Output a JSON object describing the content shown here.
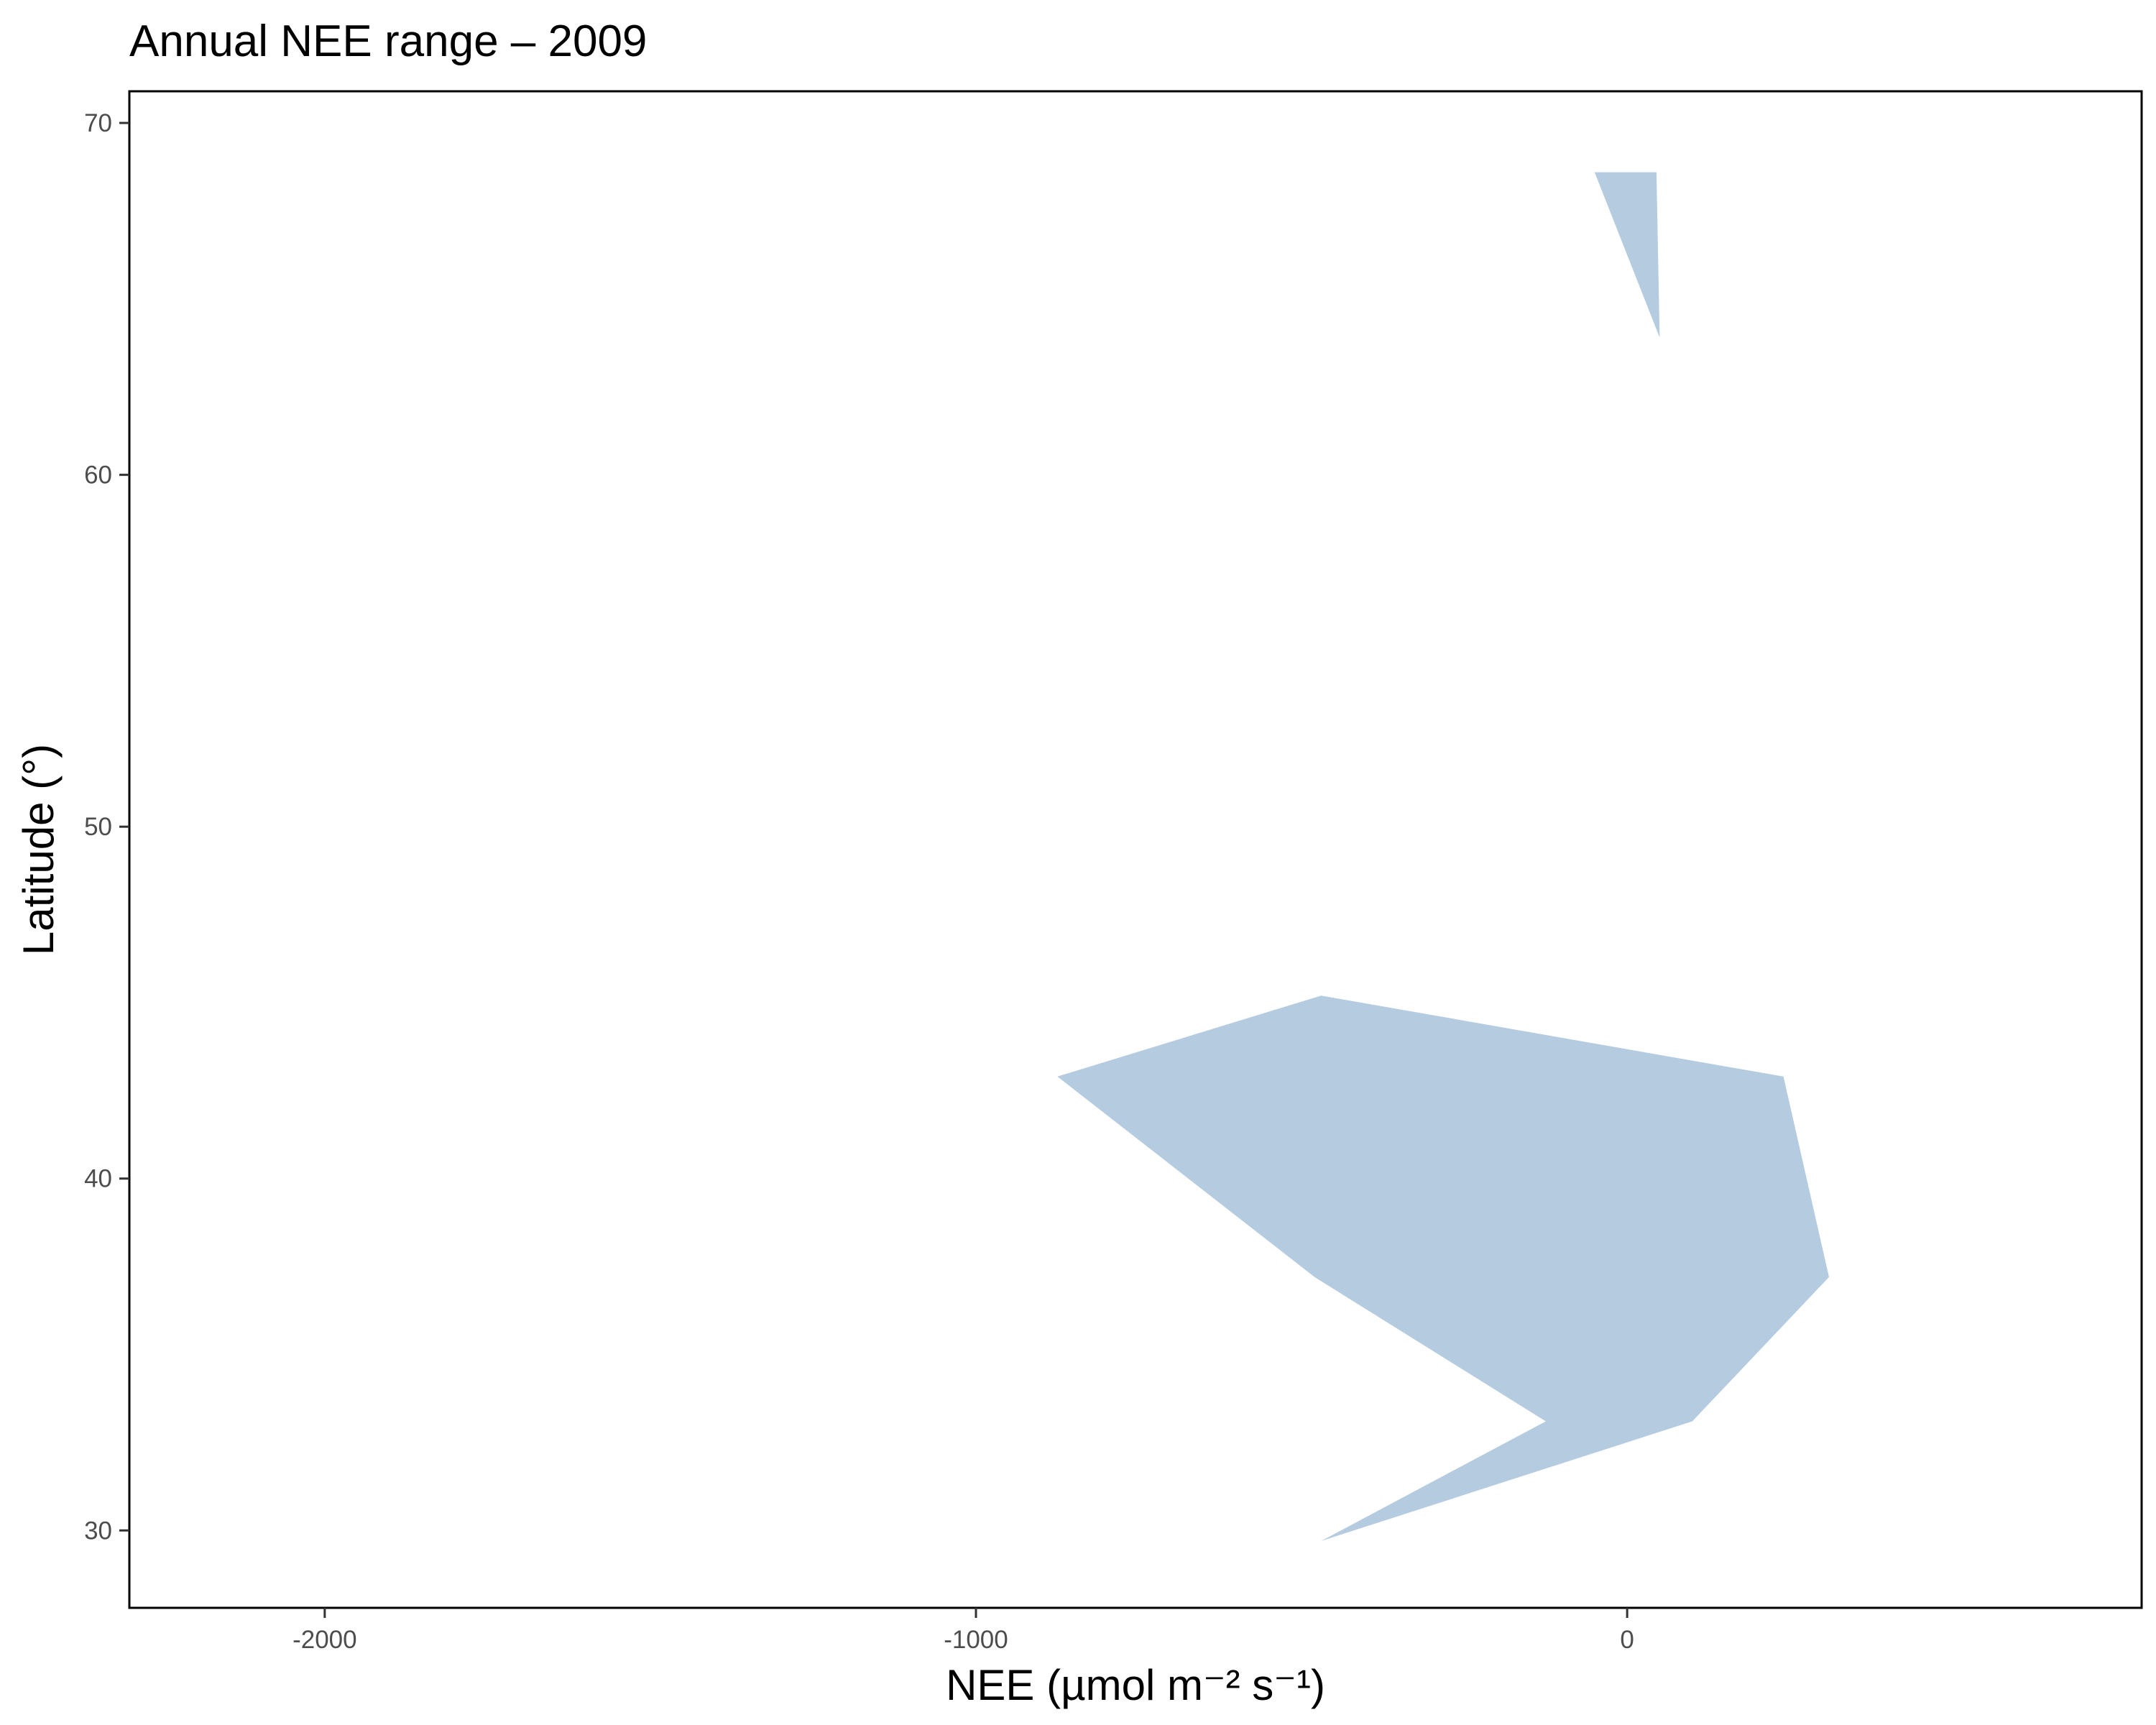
{
  "chart_data": {
    "type": "area",
    "title": "Annual NEE range – 2009",
    "xlabel": "NEE (µmol m⁻² s⁻¹)",
    "ylabel": "Latitude (°)",
    "xlim": [
      -2300,
      790
    ],
    "ylim": [
      27.8,
      70.9
    ],
    "x_ticks": [
      -2000,
      -1000,
      0
    ],
    "x_tick_labels": [
      "-2000",
      "-1000",
      "0"
    ],
    "y_ticks": [
      30,
      40,
      50,
      60,
      70
    ],
    "y_tick_labels": [
      "30",
      "40",
      "50",
      "60",
      "70"
    ],
    "grid": false,
    "fill_color": "#b5cce0",
    "series": [
      {
        "polygons": [
          [
            [
              -50,
              68.6
            ],
            [
              45,
              68.6
            ],
            [
              50,
              63.9
            ]
          ],
          [
            [
              -470,
              45.2
            ],
            [
              -875,
              42.9
            ],
            [
              -480,
              37.2
            ],
            [
              -125,
              33.1
            ],
            [
              -470,
              29.7
            ],
            [
              100,
              33.1
            ],
            [
              310,
              37.2
            ],
            [
              240,
              42.9
            ]
          ]
        ]
      }
    ]
  }
}
